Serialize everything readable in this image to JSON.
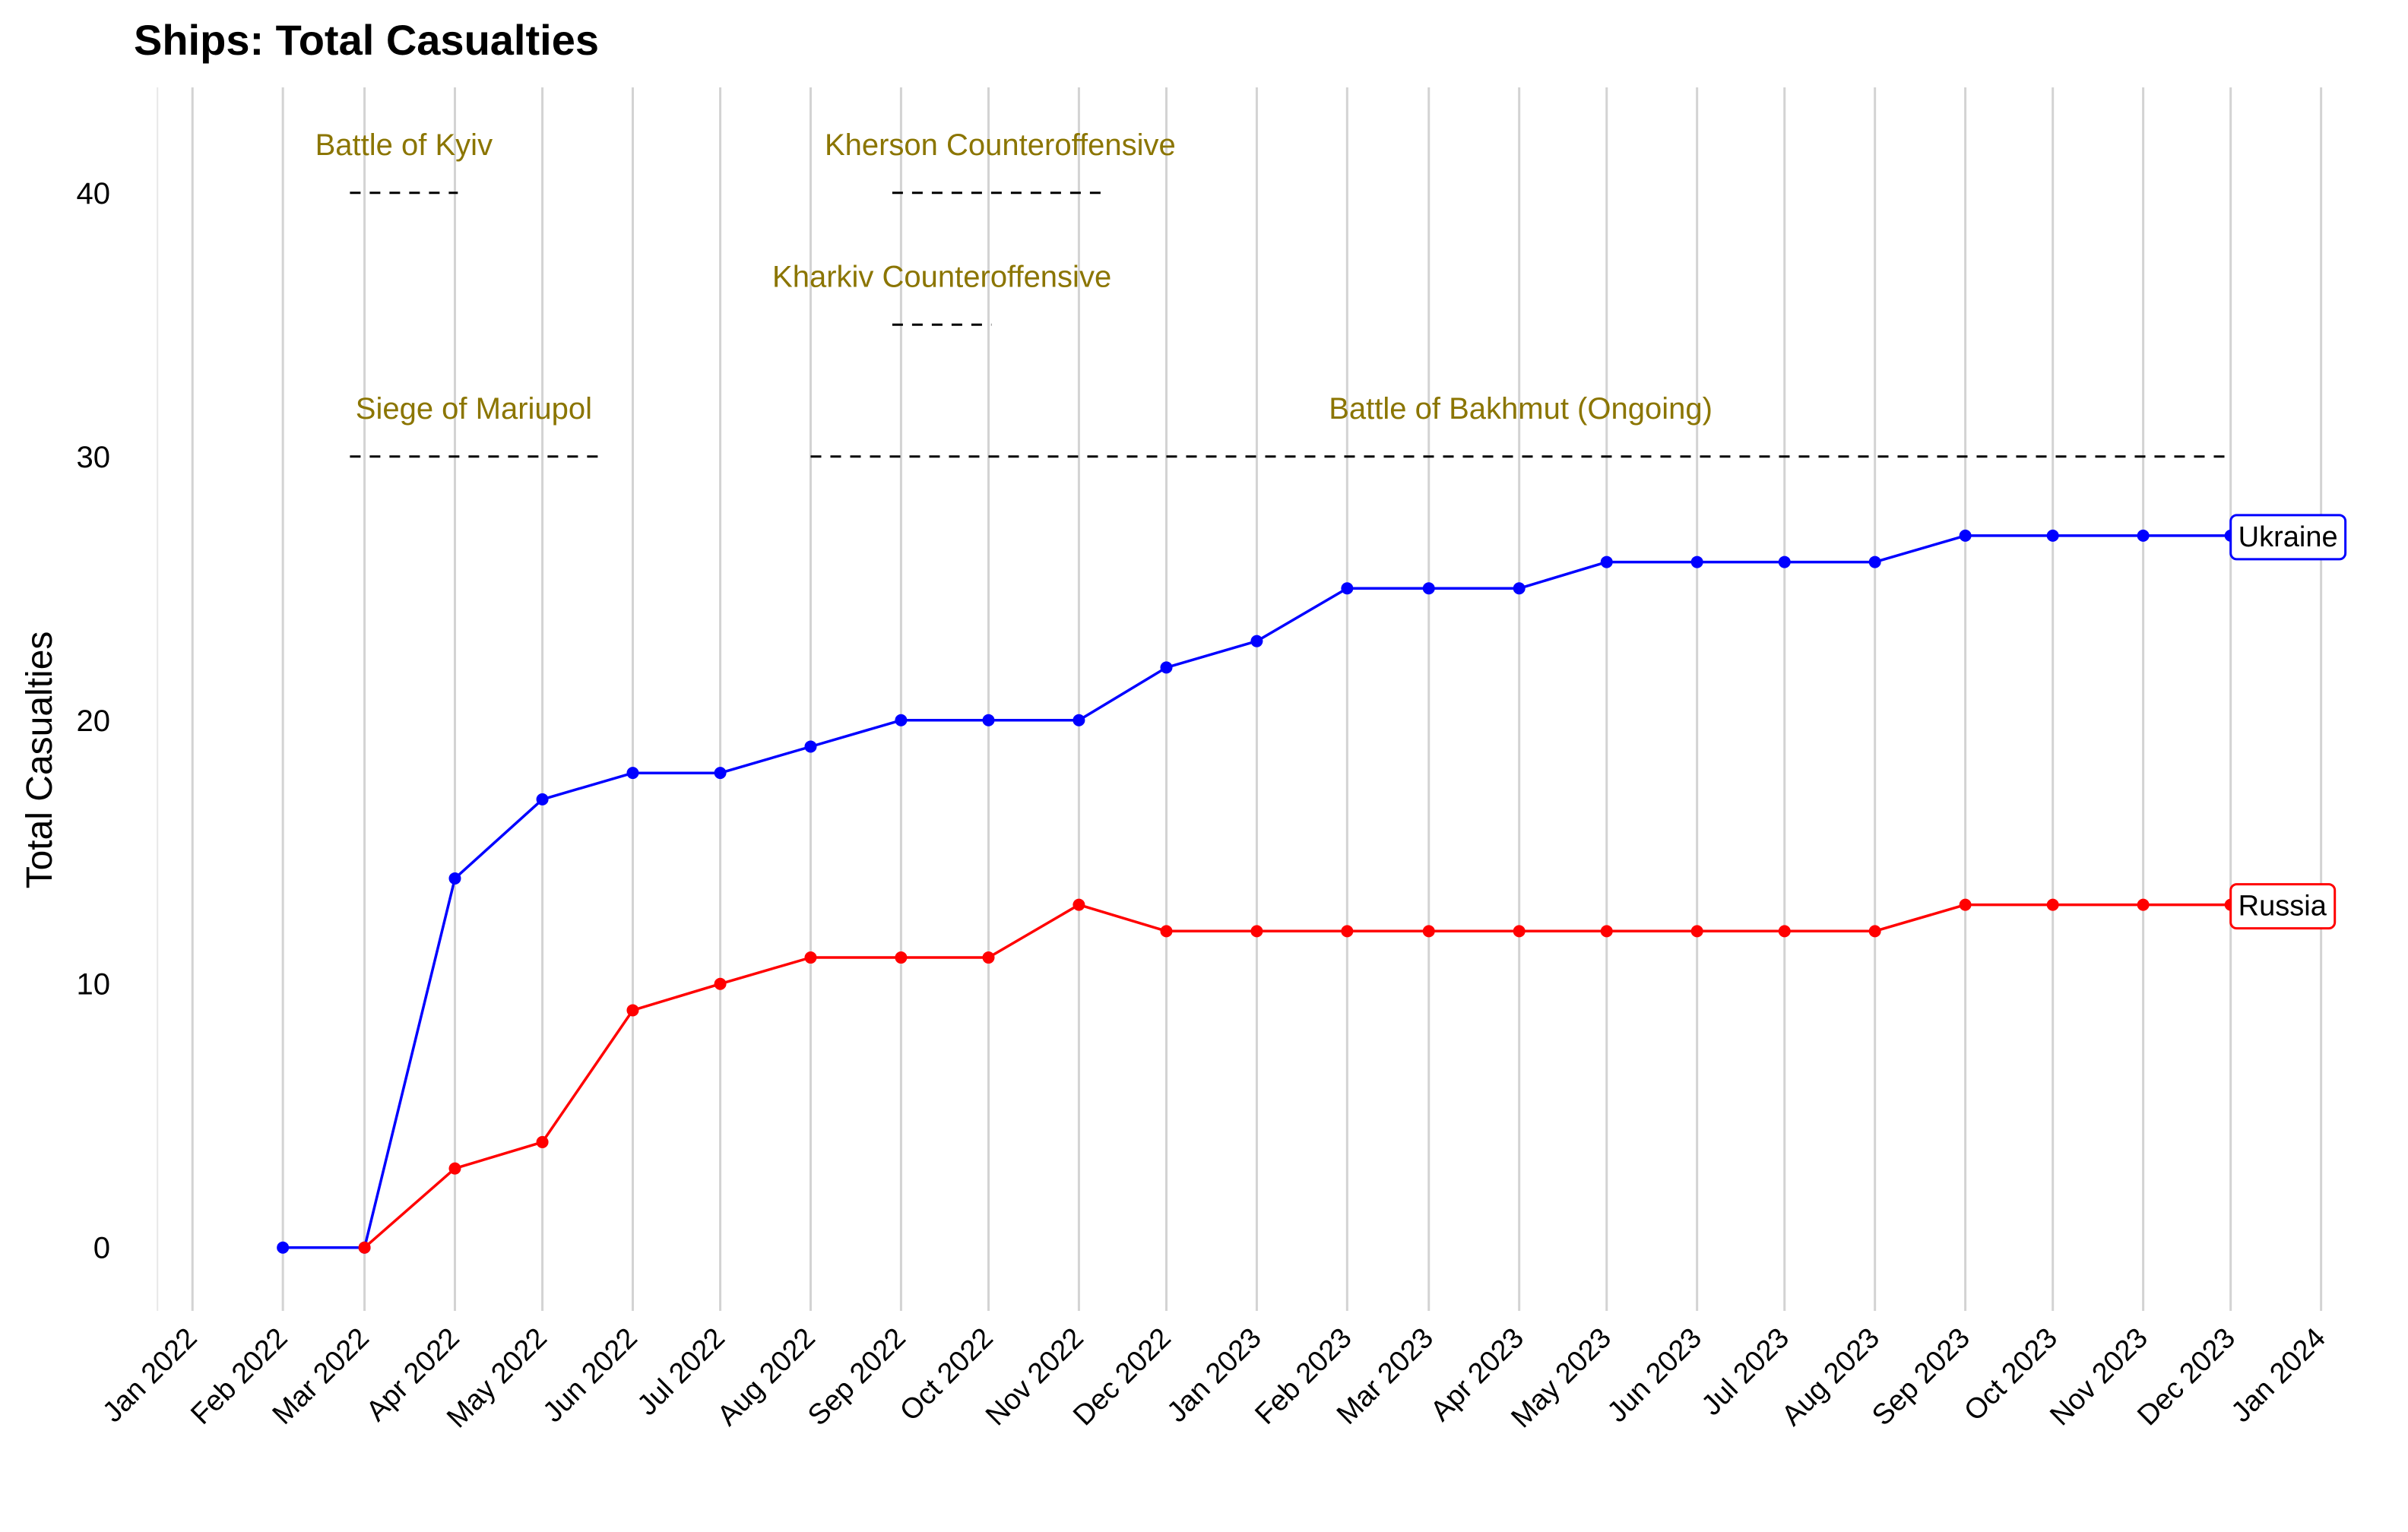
{
  "chart_data": {
    "type": "line",
    "title": "Ships: Total Casualties",
    "xlabel": "",
    "ylabel": "Total Casualties",
    "ylim": [
      -2.4,
      44
    ],
    "yticks": [
      0,
      10,
      20,
      30,
      40
    ],
    "x_ticks": [
      "Jan 2022",
      "Feb 2022",
      "Mar 2022",
      "Apr 2022",
      "May 2022",
      "Jun 2022",
      "Jul 2022",
      "Aug 2022",
      "Sep 2022",
      "Oct 2022",
      "Nov 2022",
      "Dec 2022",
      "Jan 2023",
      "Feb 2023",
      "Mar 2023",
      "Apr 2023",
      "May 2023",
      "Jun 2023",
      "Jul 2023",
      "Aug 2023",
      "Sep 2023",
      "Oct 2023",
      "Nov 2023",
      "Dec 2023",
      "Jan 2024"
    ],
    "x": [
      "2022-02-01",
      "2022-03-01",
      "2022-04-01",
      "2022-05-01",
      "2022-06-01",
      "2022-07-01",
      "2022-08-01",
      "2022-09-01",
      "2022-10-01",
      "2022-11-01",
      "2022-12-01",
      "2023-01-01",
      "2023-02-01",
      "2023-03-01",
      "2023-04-01",
      "2023-05-01",
      "2023-06-01",
      "2023-07-01",
      "2023-08-01",
      "2023-09-01",
      "2023-10-01",
      "2023-11-01",
      "2023-12-01"
    ],
    "grid": {
      "vertical": true,
      "horizontal": false
    },
    "series": [
      {
        "name": "Ukraine",
        "color": "#0000FF",
        "values": [
          0,
          0,
          14,
          17,
          18,
          18,
          19,
          20,
          20,
          20,
          22,
          23,
          25,
          25,
          25,
          26,
          26,
          26,
          26,
          27,
          27,
          27,
          27
        ]
      },
      {
        "name": "Russia",
        "color": "#FF0000",
        "x": [
          "2022-03-01",
          "2022-04-01",
          "2022-05-01",
          "2022-06-01",
          "2022-07-01",
          "2022-08-01",
          "2022-09-01",
          "2022-10-01",
          "2022-11-01",
          "2022-12-01",
          "2023-01-01",
          "2023-02-01",
          "2023-03-01",
          "2023-04-01",
          "2023-05-01",
          "2023-06-01",
          "2023-07-01",
          "2023-08-01",
          "2023-09-01",
          "2023-10-01",
          "2023-11-01",
          "2023-12-01"
        ],
        "values": [
          0,
          3,
          4,
          9,
          10,
          11,
          11,
          11,
          13,
          12,
          12,
          12,
          12,
          12,
          12,
          12,
          12,
          12,
          13,
          13,
          13,
          13
        ]
      }
    ],
    "annotations": [
      {
        "label": "Battle of Kyiv",
        "start": "2022-02-24",
        "end": "2022-04-02",
        "y": 40
      },
      {
        "label": "Kherson Counteroffensive",
        "start": "2022-08-29",
        "end": "2022-11-11",
        "y": 40
      },
      {
        "label": "Kharkiv Counteroffensive",
        "start": "2022-08-29",
        "end": "2022-10-02",
        "y": 35
      },
      {
        "label": "Siege of Mariupol",
        "start": "2022-02-24",
        "end": "2022-05-20",
        "y": 30
      },
      {
        "label": "Battle of Bakhmut (Ongoing)",
        "start": "2022-08-01",
        "end": "2023-12-01",
        "y": 30
      }
    ],
    "annotation_color": "#8B7500"
  }
}
